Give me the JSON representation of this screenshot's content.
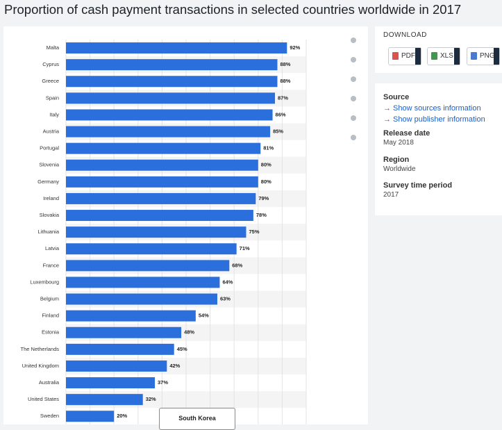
{
  "title": "Proportion of cash payment transactions in selected countries worldwide in 2017",
  "chart_data": {
    "type": "bar",
    "orientation": "horizontal",
    "categories": [
      "Malta",
      "Cyprus",
      "Greece",
      "Spain",
      "Italy",
      "Austria",
      "Portugal",
      "Slovenia",
      "Germany",
      "Ireland",
      "Slovakia",
      "Lithuania",
      "Latvia",
      "France",
      "Luxembourg",
      "Belgium",
      "Finland",
      "Estonia",
      "The Netherlands",
      "United Kingdom",
      "Australia",
      "United States",
      "Sweden"
    ],
    "values": [
      92,
      88,
      88,
      87,
      86,
      85,
      81,
      80,
      80,
      79,
      78,
      75,
      71,
      68,
      64,
      63,
      54,
      48,
      45,
      42,
      37,
      32,
      20
    ],
    "value_labels": [
      "92%",
      "88%",
      "88%",
      "87%",
      "86%",
      "85%",
      "81%",
      "80%",
      "80%",
      "79%",
      "78%",
      "75%",
      "71%",
      "68%",
      "64%",
      "63%",
      "54%",
      "48%",
      "45%",
      "42%",
      "37%",
      "32%",
      "20%"
    ],
    "color": "#2b6fdc",
    "xlim": [
      0,
      100
    ],
    "xticks": [
      0,
      10,
      20,
      30,
      40,
      50,
      60,
      70,
      80,
      90,
      100
    ],
    "grid": true
  },
  "tooltip": "South Korea",
  "sidebar": {
    "download": "DOWNLOAD",
    "buttons": [
      "PDF",
      "XLS",
      "PNG"
    ],
    "source_heading": "Source",
    "links": [
      "→ Show sources information",
      "→ Show publisher information"
    ],
    "details": [
      {
        "label": "Release date",
        "value": "May 2018"
      },
      {
        "label": "Region",
        "value": "Worldwide"
      },
      {
        "label": "Survey time period",
        "value": "2017"
      }
    ]
  }
}
